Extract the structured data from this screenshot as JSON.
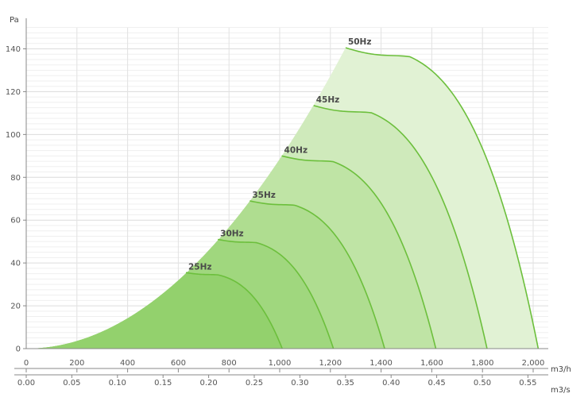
{
  "chart_data": {
    "type": "area",
    "title": "",
    "ylabel": "Pa",
    "xlabel": "m3/h",
    "x2label": "m3/s",
    "xlim": [
      0,
      2050
    ],
    "ylim": [
      0,
      150
    ],
    "x_ticks": [
      0,
      200,
      400,
      600,
      800,
      1000,
      1200,
      1400,
      1600,
      1800,
      2000
    ],
    "x_tick_labels": [
      "0",
      "200",
      "400",
      "600",
      "800",
      "1,000",
      "1,200",
      "1,400",
      "1,600",
      "1,800",
      "2,000"
    ],
    "x2_ticks": [
      0.0,
      0.05,
      0.1,
      0.15,
      0.2,
      0.25,
      0.3,
      0.35,
      0.4,
      0.45,
      0.5,
      0.55
    ],
    "x2_tick_labels": [
      "0.00",
      "0.05",
      "0.10",
      "0.15",
      "0.20",
      "0.25",
      "0.30",
      "0.35",
      "0.40",
      "0.45",
      "0.50",
      "0.55"
    ],
    "y_ticks": [
      0,
      20,
      40,
      60,
      80,
      100,
      120,
      140
    ],
    "grid": true,
    "colors": {
      "curve": "#6cbf3c",
      "fill": "#8fd06a"
    },
    "series": [
      {
        "name": "25Hz",
        "start_x": 630,
        "start_y": 35.5,
        "max_x": 1010
      },
      {
        "name": "30Hz",
        "start_x": 756,
        "start_y": 51,
        "max_x": 1212
      },
      {
        "name": "35Hz",
        "start_x": 882,
        "start_y": 69,
        "max_x": 1414
      },
      {
        "name": "40Hz",
        "start_x": 1008,
        "start_y": 90,
        "max_x": 1616
      },
      {
        "name": "45Hz",
        "start_x": 1134,
        "start_y": 113.5,
        "max_x": 1818
      },
      {
        "name": "50Hz",
        "start_x": 1260,
        "start_y": 140.5,
        "max_x": 2020
      }
    ]
  }
}
